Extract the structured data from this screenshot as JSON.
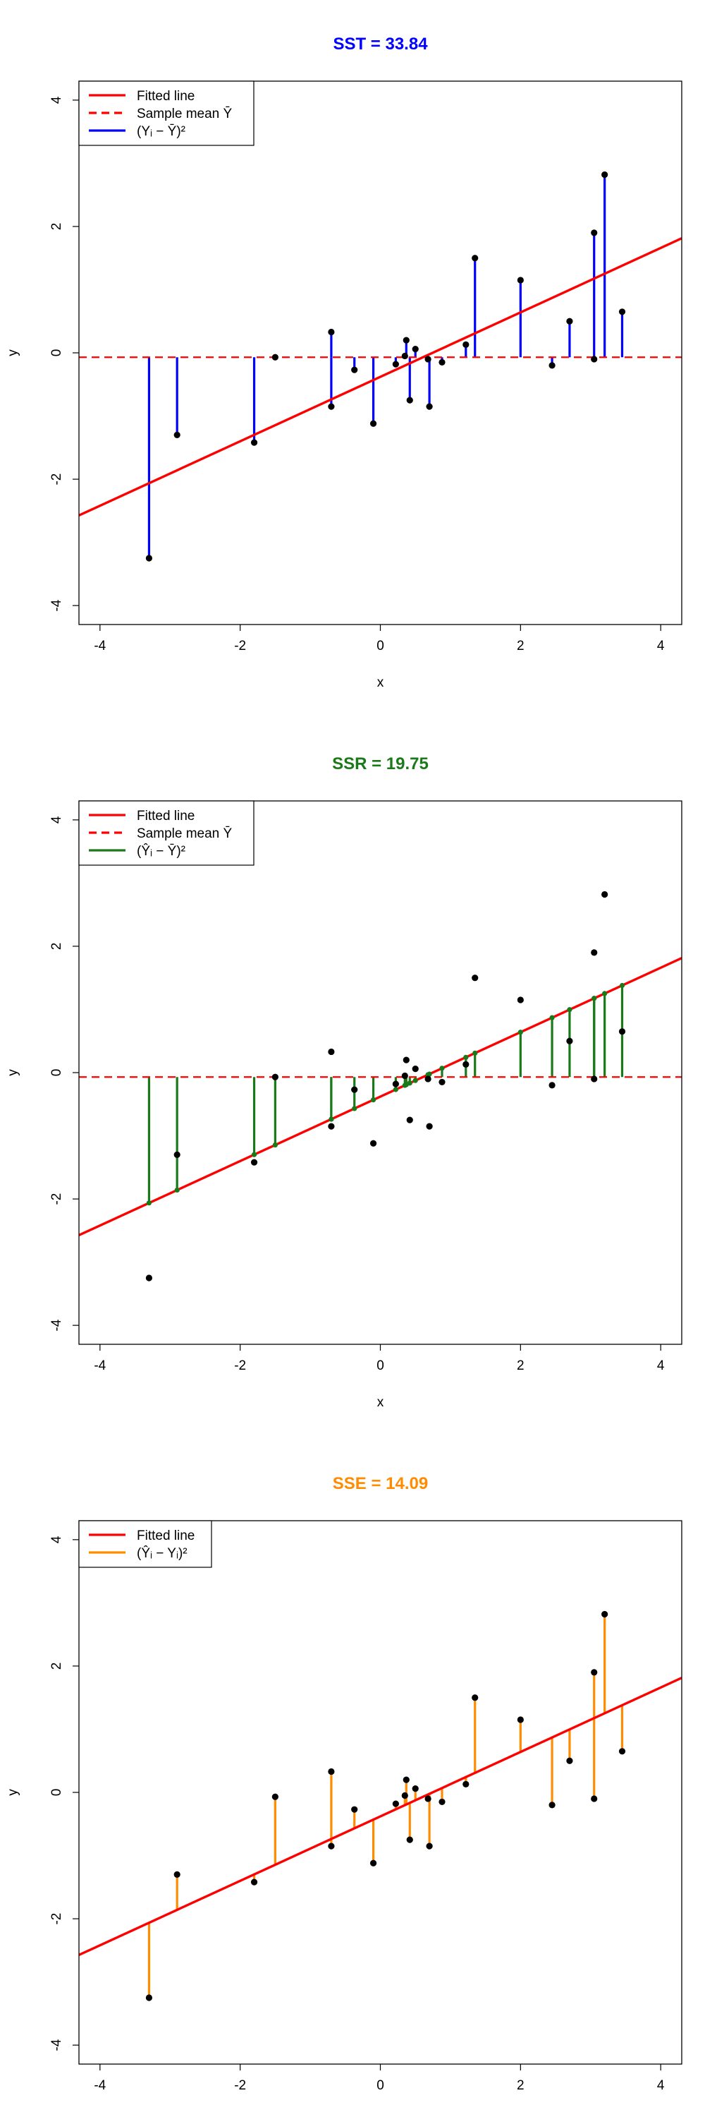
{
  "chart_data": [
    {
      "type": "scatter",
      "title": "SST = 33.84",
      "title_color": "#0000ff",
      "xlabel": "x",
      "ylabel": "y",
      "xticks": [
        "-4",
        "-2",
        "0",
        "2",
        "4"
      ],
      "yticks": [
        "-4",
        "-2",
        "0",
        "2",
        "4"
      ],
      "xlim": [
        -4.3,
        4.3
      ],
      "ylim": [
        -4.3,
        4.3
      ],
      "fitted_line": {
        "intercept": -0.38,
        "slope": 0.51,
        "color": "#ff0000"
      },
      "sample_mean": -0.07,
      "segments": "observed-to-mean",
      "segment_color": "#0000ff",
      "legend_position": "top-left",
      "legend": [
        {
          "label": "Fitted line",
          "style": "solid",
          "color": "#ff0000"
        },
        {
          "label": "Sample mean Ȳ",
          "style": "dashed",
          "color": "#ff0000"
        },
        {
          "label": "(Yᵢ − Ȳ)²",
          "style": "solid",
          "color": "#0000ff"
        }
      ]
    },
    {
      "type": "scatter",
      "title": "SSR = 19.75",
      "title_color": "#1a7a1a",
      "xlabel": "x",
      "ylabel": "y",
      "xticks": [
        "-4",
        "-2",
        "0",
        "2",
        "4"
      ],
      "yticks": [
        "-4",
        "-2",
        "0",
        "2",
        "4"
      ],
      "xlim": [
        -4.3,
        4.3
      ],
      "ylim": [
        -4.3,
        4.3
      ],
      "fitted_line": {
        "intercept": -0.38,
        "slope": 0.51,
        "color": "#ff0000"
      },
      "sample_mean": -0.07,
      "segments": "fitted-to-mean",
      "segment_color": "#1a7a1a",
      "legend_position": "top-left",
      "legend": [
        {
          "label": "Fitted line",
          "style": "solid",
          "color": "#ff0000"
        },
        {
          "label": "Sample mean Ȳ",
          "style": "dashed",
          "color": "#ff0000"
        },
        {
          "label": "(Ŷᵢ − Ȳ)²",
          "style": "solid",
          "color": "#1a7a1a"
        }
      ]
    },
    {
      "type": "scatter",
      "title": "SSE = 14.09",
      "title_color": "#ff8c00",
      "xlabel": "x",
      "ylabel": "y",
      "xticks": [
        "-4",
        "-2",
        "0",
        "2",
        "4"
      ],
      "yticks": [
        "-4",
        "-2",
        "0",
        "2",
        "4"
      ],
      "xlim": [
        -4.3,
        4.3
      ],
      "ylim": [
        -4.3,
        4.3
      ],
      "fitted_line": {
        "intercept": -0.38,
        "slope": 0.51,
        "color": "#ff0000"
      },
      "sample_mean": null,
      "segments": "observed-to-fitted",
      "segment_color": "#ff8c00",
      "legend_position": "top-left",
      "legend": [
        {
          "label": "Fitted line",
          "style": "solid",
          "color": "#ff0000"
        },
        {
          "label": "(Ŷᵢ − Yᵢ)²",
          "style": "solid",
          "color": "#ff8c00"
        }
      ]
    }
  ],
  "points": [
    {
      "x": -3.3,
      "y": -3.25
    },
    {
      "x": -2.9,
      "y": -1.3
    },
    {
      "x": -1.8,
      "y": -1.42
    },
    {
      "x": -1.5,
      "y": -0.07
    },
    {
      "x": -0.7,
      "y": 0.33
    },
    {
      "x": -0.7,
      "y": -0.85
    },
    {
      "x": -0.37,
      "y": -0.27
    },
    {
      "x": -0.1,
      "y": -1.12
    },
    {
      "x": 0.22,
      "y": -0.18
    },
    {
      "x": 0.35,
      "y": -0.05
    },
    {
      "x": 0.37,
      "y": 0.2
    },
    {
      "x": 0.42,
      "y": -0.75
    },
    {
      "x": 0.5,
      "y": 0.06
    },
    {
      "x": 0.68,
      "y": -0.1
    },
    {
      "x": 0.7,
      "y": -0.85
    },
    {
      "x": 0.88,
      "y": -0.15
    },
    {
      "x": 1.22,
      "y": 0.13
    },
    {
      "x": 1.35,
      "y": 1.5
    },
    {
      "x": 2.0,
      "y": 1.15
    },
    {
      "x": 2.45,
      "y": -0.2
    },
    {
      "x": 2.7,
      "y": 0.5
    },
    {
      "x": 3.05,
      "y": 1.9
    },
    {
      "x": 3.05,
      "y": -0.1
    },
    {
      "x": 3.2,
      "y": 2.82
    },
    {
      "x": 3.45,
      "y": 0.65
    }
  ]
}
